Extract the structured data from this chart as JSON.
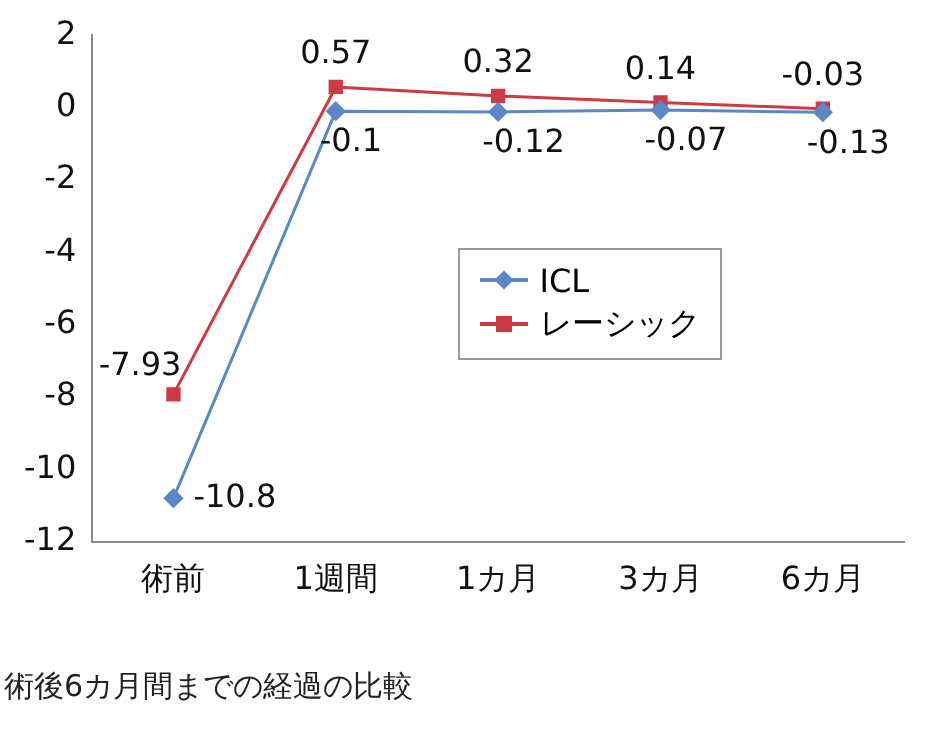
{
  "chart_data": {
    "type": "line",
    "categories": [
      "術前",
      "1週間",
      "1カ月",
      "3カ月",
      "6カ月"
    ],
    "series": [
      {
        "name": "ICL",
        "color": "#5b87c9",
        "marker": "diamond",
        "values": [
          -10.8,
          -0.1,
          -0.12,
          -0.07,
          -0.13
        ]
      },
      {
        "name": "レーシック",
        "color": "#cc3b46",
        "marker": "square",
        "values": [
          -7.93,
          0.57,
          0.32,
          0.14,
          -0.03
        ]
      }
    ],
    "ylim": [
      -12,
      2
    ],
    "yticks": [
      -12,
      -10,
      -8,
      -6,
      -4,
      -2,
      0,
      2
    ],
    "grid": false,
    "legend": "center right",
    "data_labels": true,
    "annotations": [
      "術後6カ月間までの経過の比較"
    ]
  }
}
